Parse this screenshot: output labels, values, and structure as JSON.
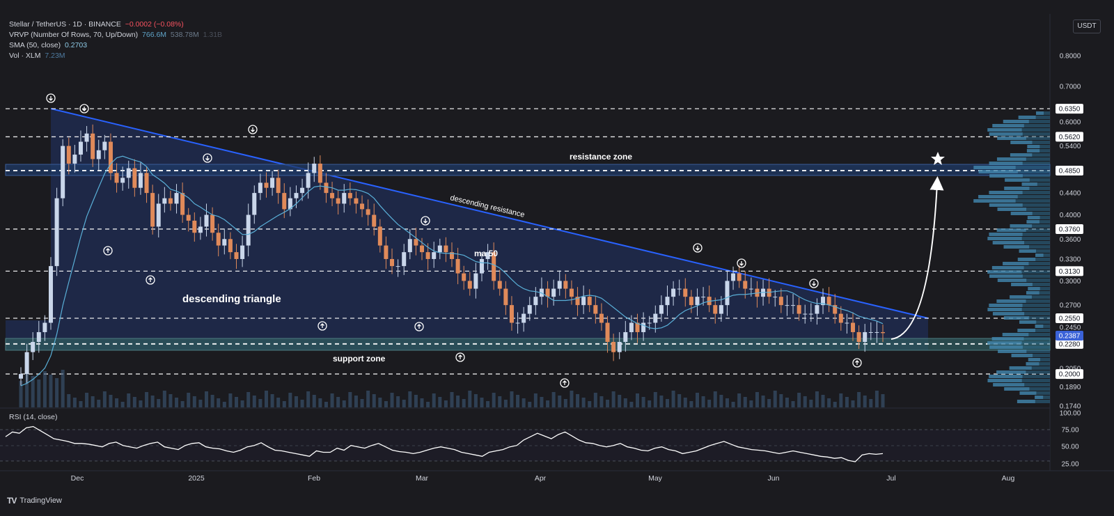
{
  "legend": {
    "symbol": "Stellar / TetherUS · 1D · BINANCE",
    "change": "−0.0002 (−0.08%)",
    "vrvp_label": "VRVP (Number Of Rows, 70, Up/Down)",
    "vrvp_v1": "766.6M",
    "vrvp_v2": "538.78M",
    "vrvp_v3": "1.31B",
    "sma_label": "SMA (50, close)",
    "sma_value": "0.2703",
    "vol_label": "Vol · XLM",
    "vol_value": "7.23M"
  },
  "currency_button": "USDT",
  "rsi_label": "RSI (14, close)",
  "brand": "TradingView",
  "colors": {
    "background": "#1b1b1f",
    "triangle_fill": "#1e2a4f",
    "resistance_line": "#2962ff",
    "up_candle": "#c9d6ea",
    "down_candle": "#e08a5a",
    "sma": "#5ab0d8",
    "support_zone": "#2f5a5e",
    "resistance_zone": "#1f3a66"
  },
  "chart_data": {
    "type": "candlestick",
    "price_axis_ticks": [
      "0.8000",
      "0.7000",
      "0.6000",
      "0.5400",
      "0.4400",
      "0.4000",
      "0.3600",
      "0.3300",
      "0.3000",
      "0.2700",
      "0.2450",
      "0.2050",
      "0.1890",
      "0.1740"
    ],
    "highlighted_levels": [
      "0.6350",
      "0.5620",
      "0.4850",
      "0.3760",
      "0.3130",
      "0.2550",
      "0.2280",
      "0.2000"
    ],
    "current_price": "0.2387",
    "x_labels": [
      "Dec",
      "2025",
      "Feb",
      "Mar",
      "Apr",
      "May",
      "Jun",
      "Jul",
      "Aug"
    ],
    "rsi_ticks": [
      "100.00",
      "75.00",
      "50.00",
      "25.00"
    ],
    "annotations": {
      "resistance_zone": "resistance zone",
      "support_zone": "support zone",
      "descending_resistance": "descending resistance",
      "ma50": "ma 50",
      "pattern": "descending triangle"
    },
    "closes": [
      0.2,
      0.22,
      0.23,
      0.24,
      0.25,
      0.32,
      0.43,
      0.54,
      0.5,
      0.52,
      0.55,
      0.57,
      0.51,
      0.53,
      0.55,
      0.48,
      0.46,
      0.47,
      0.49,
      0.45,
      0.48,
      0.44,
      0.38,
      0.42,
      0.43,
      0.42,
      0.44,
      0.4,
      0.39,
      0.37,
      0.38,
      0.4,
      0.37,
      0.35,
      0.36,
      0.34,
      0.33,
      0.35,
      0.4,
      0.44,
      0.46,
      0.45,
      0.47,
      0.44,
      0.41,
      0.43,
      0.44,
      0.45,
      0.48,
      0.5,
      0.46,
      0.44,
      0.43,
      0.42,
      0.44,
      0.43,
      0.42,
      0.41,
      0.4,
      0.38,
      0.35,
      0.33,
      0.32,
      0.32,
      0.34,
      0.36,
      0.35,
      0.34,
      0.33,
      0.34,
      0.35,
      0.34,
      0.33,
      0.31,
      0.3,
      0.29,
      0.31,
      0.33,
      0.34,
      0.3,
      0.29,
      0.27,
      0.25,
      0.25,
      0.26,
      0.27,
      0.28,
      0.29,
      0.28,
      0.29,
      0.3,
      0.29,
      0.28,
      0.27,
      0.28,
      0.27,
      0.26,
      0.25,
      0.23,
      0.22,
      0.23,
      0.24,
      0.25,
      0.24,
      0.25,
      0.25,
      0.26,
      0.27,
      0.28,
      0.29,
      0.29,
      0.28,
      0.27,
      0.28,
      0.28,
      0.27,
      0.26,
      0.27,
      0.3,
      0.31,
      0.3,
      0.29,
      0.29,
      0.28,
      0.29,
      0.28,
      0.28,
      0.27,
      0.27,
      0.27,
      0.26,
      0.26,
      0.26,
      0.27,
      0.28,
      0.27,
      0.26,
      0.25,
      0.25,
      0.24,
      0.23,
      0.24,
      0.24,
      0.24,
      0.239
    ],
    "rsi": [
      65,
      72,
      70,
      78,
      80,
      74,
      68,
      62,
      60,
      58,
      55,
      55,
      54,
      52,
      50,
      55,
      57,
      52,
      50,
      48,
      52,
      55,
      57,
      50,
      48,
      46,
      52,
      55,
      56,
      50,
      48,
      47,
      44,
      42,
      45,
      50,
      52,
      56,
      50,
      45,
      44,
      42,
      40,
      38,
      36,
      44,
      42,
      42,
      48,
      45,
      52,
      50,
      48,
      52,
      55,
      50,
      45,
      43,
      42,
      40,
      42,
      45,
      48,
      50,
      48,
      46,
      42,
      40,
      38,
      36,
      42,
      44,
      46,
      50,
      52,
      60,
      65,
      70,
      66,
      62,
      68,
      72,
      66,
      60,
      56,
      55,
      52,
      50,
      52,
      55,
      50,
      48,
      45,
      44,
      48,
      50,
      46,
      44,
      40,
      42,
      44,
      48,
      52,
      55,
      58,
      54,
      50,
      48,
      46,
      45,
      44,
      42,
      40,
      42,
      44,
      42,
      40,
      38,
      36,
      35,
      33,
      34,
      30,
      28,
      38,
      40,
      39,
      40
    ]
  }
}
